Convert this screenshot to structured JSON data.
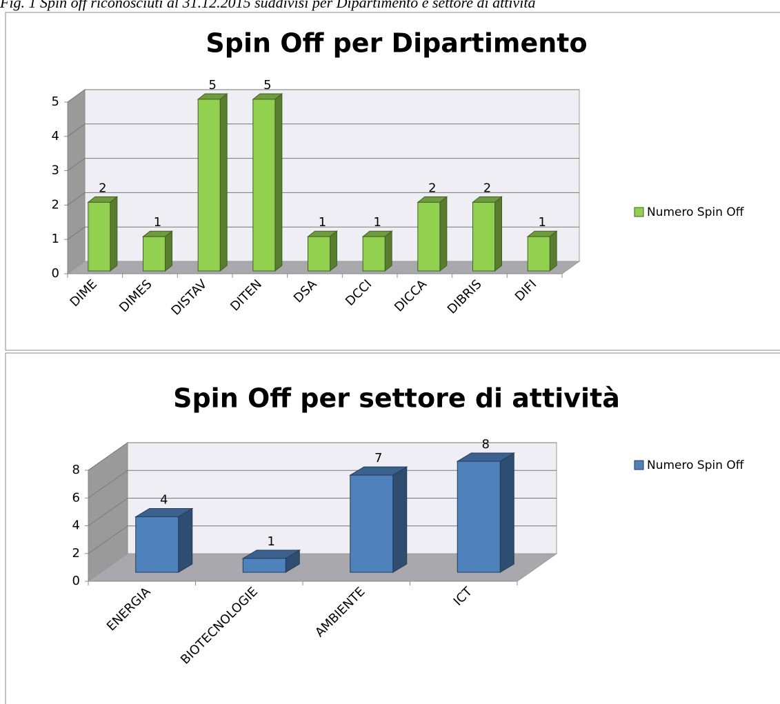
{
  "caption": "Fig. 1 Spin off riconosciuti al 31.12.2015 suddivisi per Dipartimento e settore di attività",
  "chart_data": [
    {
      "type": "bar3d",
      "title": "Spin Off per Dipartimento",
      "categories": [
        "DIME",
        "DIMES",
        "DISTAV",
        "DITEN",
        "DSA",
        "DCCI",
        "DICCA",
        "DIBRIS",
        "DIFI"
      ],
      "series": [
        {
          "name": "Numero Spin Off",
          "color": "#92d050",
          "values": [
            2,
            1,
            5,
            5,
            1,
            1,
            2,
            2,
            1
          ]
        }
      ],
      "ylim": [
        0,
        5
      ],
      "yticks": [
        0,
        1,
        2,
        3,
        4,
        5
      ],
      "grid": true,
      "legend": "right"
    },
    {
      "type": "bar3d",
      "title": "Spin Off per settore di attività",
      "categories": [
        "ENERGIA",
        "BIOTECNOLOGIE",
        "AMBIENTE",
        "ICT"
      ],
      "series": [
        {
          "name": "Numero Spin Off",
          "color": "#4f81bd",
          "values": [
            4,
            1,
            7,
            8
          ]
        }
      ],
      "ylim": [
        0,
        8
      ],
      "yticks": [
        0,
        2,
        4,
        6,
        8
      ],
      "grid": true,
      "legend": "right"
    }
  ]
}
